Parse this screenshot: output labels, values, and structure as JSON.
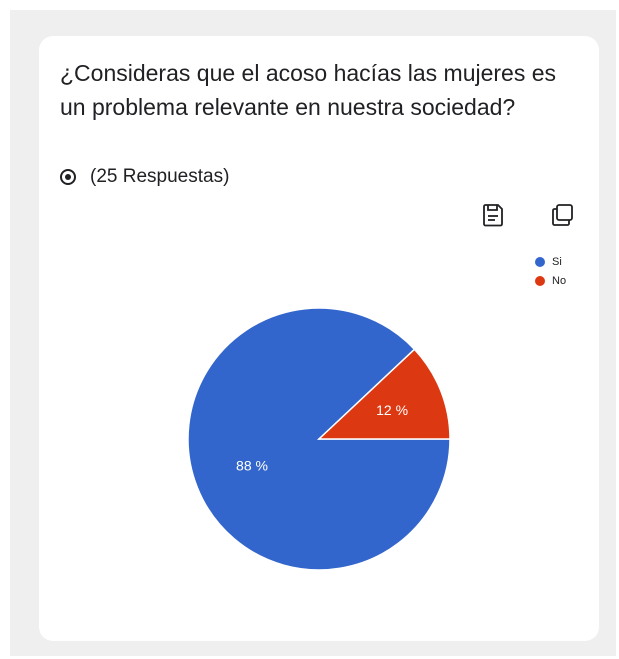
{
  "question": {
    "title": "¿Consideras que el acoso hacías las mujeres es un problema relevante en nuestra sociedad?",
    "responses_label": "(25 Respuestas)"
  },
  "toolbar": {
    "save_icon": "save-icon",
    "copy_icon": "copy-icon"
  },
  "chart_data": {
    "type": "pie",
    "slices": [
      {
        "label": "Si",
        "value": 88,
        "display": "88 %",
        "color": "#3366cc"
      },
      {
        "label": "No",
        "value": 12,
        "display": "12 %",
        "color": "#dc3912"
      }
    ],
    "legend": {
      "position": "top-right"
    }
  }
}
